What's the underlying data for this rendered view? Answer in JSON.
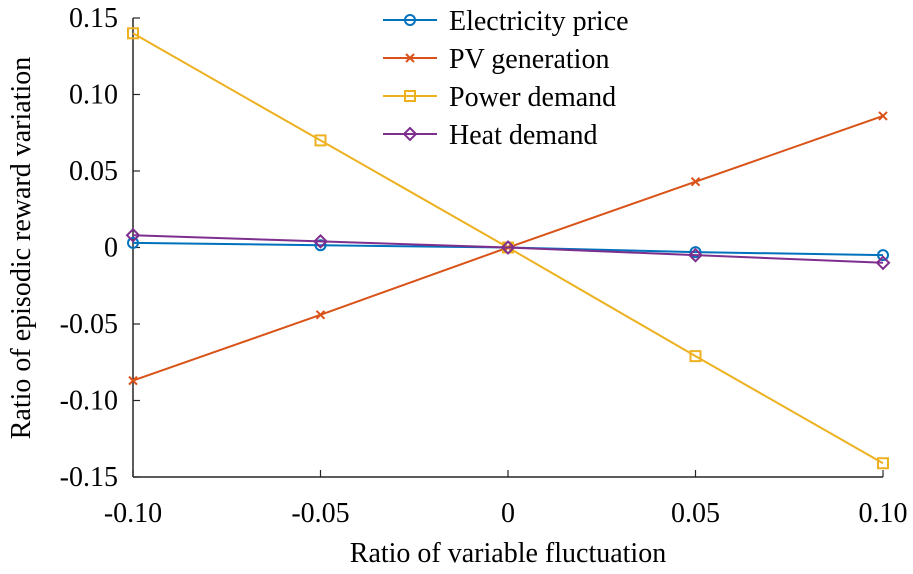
{
  "chart_data": {
    "type": "line",
    "xlabel": "Ratio of variable fluctuation",
    "ylabel": "Ratio of episodic reward variation",
    "x": [
      -0.1,
      -0.05,
      0,
      0.05,
      0.1
    ],
    "xlim": [
      -0.1,
      0.1
    ],
    "ylim": [
      -0.15,
      0.15
    ],
    "x_tick_values": [
      -0.1,
      -0.05,
      0,
      0.05,
      0.1
    ],
    "x_tick_labels": [
      "-0.10",
      "-0.05",
      "0",
      "0.05",
      "0.10"
    ],
    "y_tick_values": [
      -0.15,
      -0.1,
      -0.05,
      0,
      0.05,
      0.1,
      0.15
    ],
    "y_tick_labels": [
      "-0.15",
      "-0.10",
      "-0.05",
      "0",
      "0.05",
      "0.10",
      "0.15"
    ],
    "grid": false,
    "legend_position": "top-center",
    "series": [
      {
        "name": "Electricity price",
        "values": [
          0.003,
          0.0015,
          0,
          -0.003,
          -0.005
        ],
        "color": "#0072BD",
        "marker": "circle"
      },
      {
        "name": "PV generation",
        "values": [
          -0.087,
          -0.044,
          0,
          0.043,
          0.086
        ],
        "color": "#D95319",
        "marker": "x"
      },
      {
        "name": "Power demand",
        "values": [
          0.14,
          0.07,
          0,
          -0.071,
          -0.141
        ],
        "color": "#EDB120",
        "marker": "square"
      },
      {
        "name": "Heat demand",
        "values": [
          0.008,
          0.004,
          0,
          -0.005,
          -0.01
        ],
        "color": "#7E2F8E",
        "marker": "diamond"
      }
    ]
  }
}
